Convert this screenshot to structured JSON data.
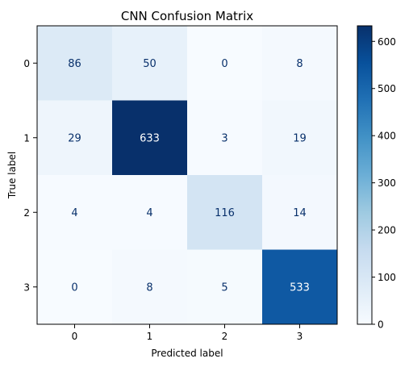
{
  "chart_data": {
    "type": "heatmap",
    "title": "CNN Confusion Matrix",
    "xlabel": "Predicted label",
    "ylabel": "True label",
    "x_categories": [
      "0",
      "1",
      "2",
      "3"
    ],
    "y_categories": [
      "0",
      "1",
      "2",
      "3"
    ],
    "values": [
      [
        86,
        50,
        0,
        8
      ],
      [
        29,
        633,
        3,
        19
      ],
      [
        4,
        4,
        116,
        14
      ],
      [
        0,
        8,
        5,
        533
      ]
    ],
    "colormap": "Blues",
    "vmin": 0,
    "vmax": 633,
    "colorbar_ticks": [
      0,
      100,
      200,
      300,
      400,
      500,
      600
    ],
    "colors": {
      "low": "#f7fbff",
      "high": "#08306b",
      "text_light": "#ffffff",
      "text_dark": "#08306b"
    }
  }
}
